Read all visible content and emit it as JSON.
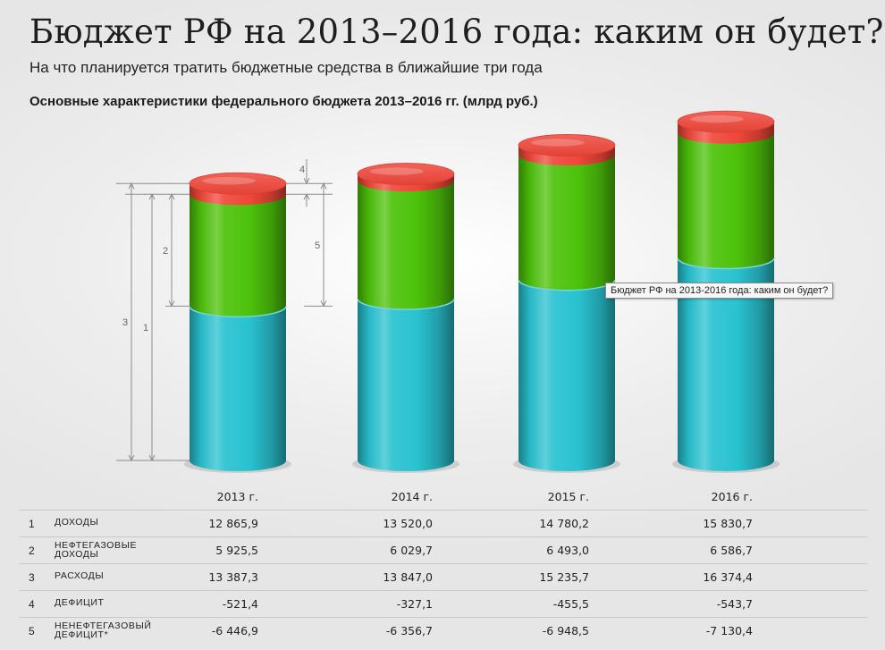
{
  "title": "Бюджет РФ на 2013–2016 года: каким он будет?",
  "subtitle": "На что планируется тратить бюджетные средства в ближайшие три года",
  "chart_title": "Основные характеристики федерального бюджета 2013–2016 гг. (млрд руб.)",
  "tooltip": "Бюджет РФ на 2013-2016 года: каким он будет?",
  "colors": {
    "cyan": "#29c2d0",
    "green": "#4dc20a",
    "red": "#f0473a",
    "annotation": "#8c8c8c"
  },
  "annotation_numbers": [
    "3",
    "1",
    "2",
    "4",
    "5"
  ],
  "chart_data": {
    "type": "bar",
    "categories": [
      "2013 г.",
      "2014 г.",
      "2015 г.",
      "2016 г."
    ],
    "series": [
      {
        "name": "доходы",
        "values": [
          12865.9,
          13520.0,
          14780.2,
          15830.7
        ]
      },
      {
        "name": "нефтегазовые доходы",
        "values": [
          5925.5,
          6029.7,
          6493.0,
          6586.7
        ]
      },
      {
        "name": "расходы",
        "values": [
          13387.3,
          13847.0,
          15235.7,
          16374.4
        ]
      },
      {
        "name": "дефицит",
        "values": [
          -521.4,
          -327.1,
          -455.5,
          -543.7
        ]
      },
      {
        "name": "ненефтегазовый дефицит*",
        "values": [
          -6446.9,
          -6356.7,
          -6948.5,
          -7130.4
        ]
      }
    ]
  },
  "table": {
    "years": [
      "2013 г.",
      "2014 г.",
      "2015 г.",
      "2016 г."
    ],
    "rows": [
      {
        "num": "1",
        "label": "доходы",
        "values": [
          "12 865,9",
          "13 520,0",
          "14 780,2",
          "15 830,7"
        ]
      },
      {
        "num": "2",
        "label": "нефтегазовые доходы",
        "values": [
          "5 925,5",
          "6 029,7",
          "6 493,0",
          "6 586,7"
        ]
      },
      {
        "num": "3",
        "label": "расходы",
        "values": [
          "13 387,3",
          "13 847,0",
          "15 235,7",
          "16 374,4"
        ]
      },
      {
        "num": "4",
        "label": "дефицит",
        "values": [
          "-521,4",
          "-327,1",
          "-455,5",
          "-543,7"
        ]
      },
      {
        "num": "5",
        "label": "ненефтегазовый дефицит*",
        "values": [
          "-6 446,9",
          "-6 356,7",
          "-6 948,5",
          "-7 130,4"
        ]
      }
    ]
  }
}
